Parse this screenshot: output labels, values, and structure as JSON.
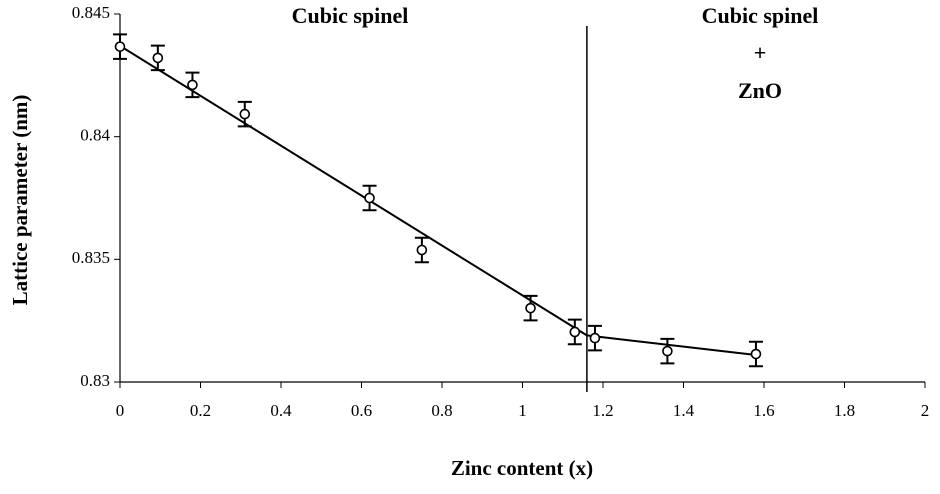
{
  "chart_data": {
    "type": "scatter",
    "x_label": "Zinc content (x)",
    "y_label": "Lattice parameter (nm)",
    "annotations": [
      "Cubic spinel",
      "Cubic spinel",
      "+",
      "ZnO"
    ],
    "series": [
      {
        "name": "Lattice parameter",
        "color": "#000000",
        "x": [
          0,
          0.094,
          0.18,
          0.31,
          0.62,
          0.75,
          1.02,
          1.13,
          1.18,
          1.36,
          1.58
        ],
        "values": [
          0.84367,
          0.84321,
          0.84211,
          0.84092,
          0.8375,
          0.83538,
          0.83301,
          0.83204,
          0.83179,
          0.83126,
          0.83114
        ],
        "errors": [
          0.0005,
          0.0005,
          0.0005,
          0.0005,
          0.0005,
          0.0005,
          0.0005,
          0.0005,
          0.0005,
          0.0005,
          0.0005
        ]
      }
    ],
    "fit_line": {
      "x": [
        0,
        1.16,
        1.58
      ],
      "values": [
        0.8437,
        0.8319,
        0.8311
      ]
    },
    "phase_boundary_x": 1.16,
    "xlim": [
      0,
      2
    ],
    "xticks": [
      0,
      0.2,
      0.4,
      0.6,
      0.8,
      1,
      1.2,
      1.4,
      1.6,
      1.8,
      2
    ],
    "ylim": [
      0.83,
      0.845
    ],
    "yticks": [
      0.83,
      0.835,
      0.84,
      0.845
    ],
    "grid": false
  }
}
